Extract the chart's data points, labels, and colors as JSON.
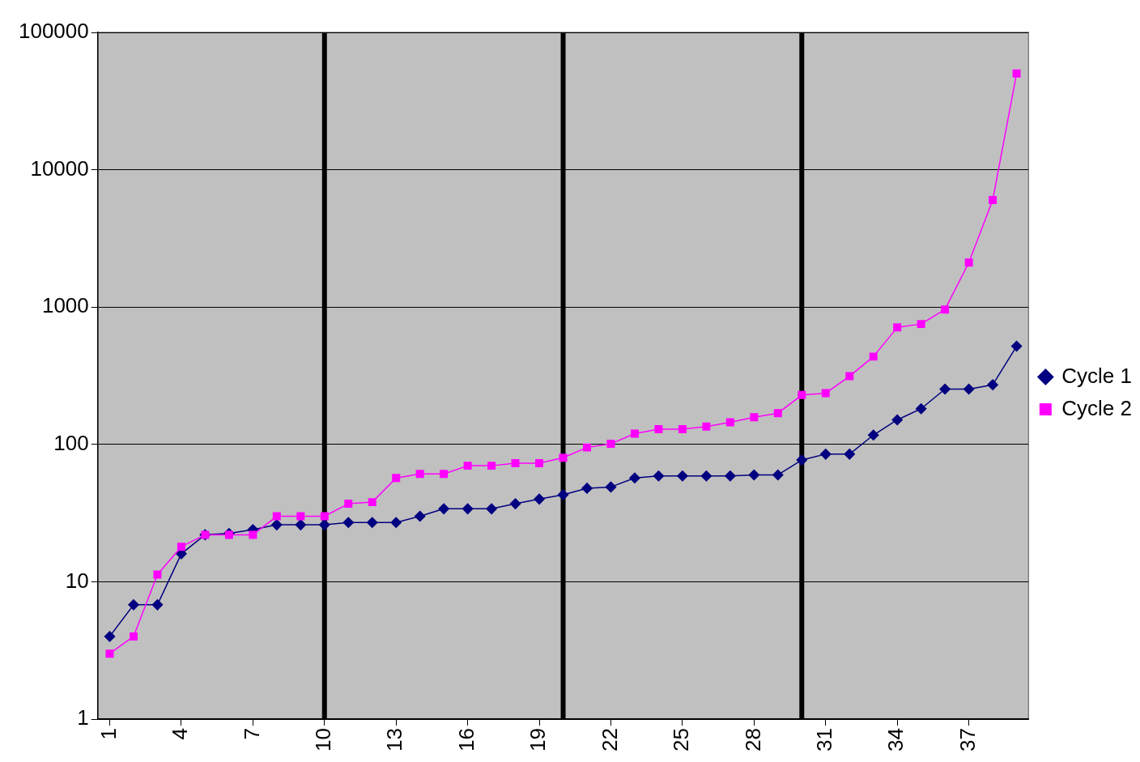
{
  "chart_data": {
    "type": "line",
    "x": [
      1,
      2,
      3,
      4,
      5,
      6,
      7,
      8,
      9,
      10,
      11,
      12,
      13,
      14,
      15,
      16,
      17,
      18,
      19,
      20,
      21,
      22,
      23,
      24,
      25,
      26,
      27,
      28,
      29,
      30,
      31,
      32,
      33,
      34,
      35,
      36,
      37,
      38,
      39
    ],
    "series": [
      {
        "name": "Cycle 1",
        "color": "#000080",
        "marker": "diamond",
        "values": [
          4,
          6.8,
          6.8,
          16,
          22,
          22.5,
          24,
          26,
          26,
          26,
          27,
          27,
          27,
          30,
          34,
          34,
          34,
          37,
          40,
          43,
          48,
          49,
          57,
          59,
          59,
          59,
          59,
          60,
          60,
          77,
          85,
          85,
          117,
          151,
          182,
          253,
          253,
          272,
          519
        ]
      },
      {
        "name": "Cycle 2",
        "color": "#ff00ff",
        "marker": "square",
        "values": [
          3,
          4,
          11.3,
          18,
          22,
          22,
          22,
          30,
          30,
          30,
          37,
          38,
          57,
          61,
          61,
          70,
          70,
          73,
          73,
          80,
          95,
          101,
          120,
          129,
          129,
          135,
          145,
          158,
          169,
          229,
          236,
          314,
          436,
          711,
          753,
          961,
          2110,
          6020,
          50200
        ]
      }
    ],
    "log": "y",
    "xlim": [
      0.5,
      39.5
    ],
    "xticks": [
      1,
      4,
      7,
      10,
      13,
      16,
      19,
      22,
      25,
      28,
      31,
      34,
      37
    ],
    "ylim": [
      1,
      100000
    ],
    "yticks": [
      1,
      10,
      100,
      1000,
      10000,
      100000
    ],
    "grid": "y",
    "legend": "right",
    "line_style": "solid",
    "ref_lines": [
      {
        "axis": "x",
        "value": 10,
        "color": "#000000"
      },
      {
        "axis": "x",
        "value": 20,
        "color": "#000000"
      },
      {
        "axis": "x",
        "value": 30,
        "color": "#000000"
      }
    ]
  }
}
